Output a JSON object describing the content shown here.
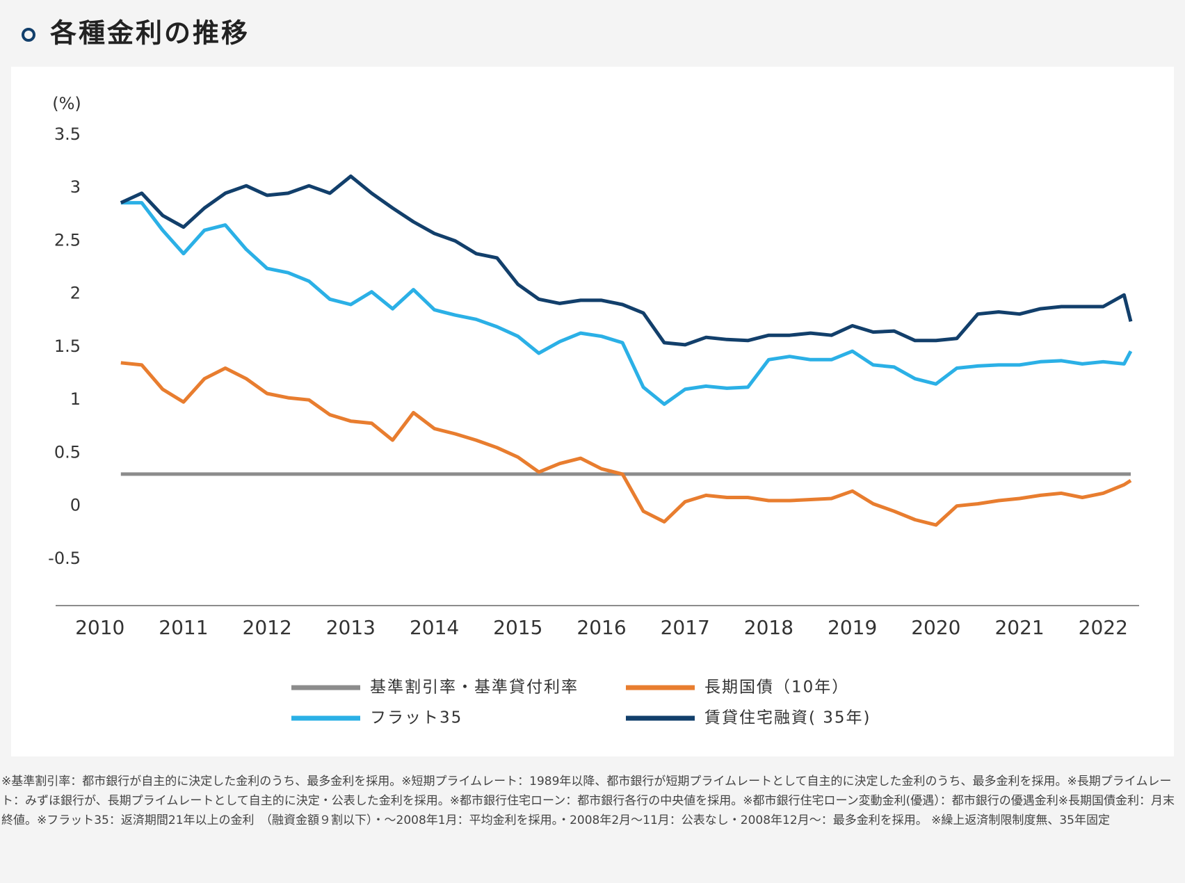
{
  "chart_data": {
    "type": "line",
    "title": "各種金利の推移",
    "y_label": "(%)",
    "x": [
      2010.25,
      2010.5,
      2010.75,
      2011.0,
      2011.25,
      2011.5,
      2011.75,
      2012.0,
      2012.25,
      2012.5,
      2012.75,
      2013.0,
      2013.25,
      2013.5,
      2013.75,
      2014.0,
      2014.25,
      2014.5,
      2014.75,
      2015.0,
      2015.25,
      2015.5,
      2015.75,
      2016.0,
      2016.25,
      2016.5,
      2016.75,
      2017.0,
      2017.25,
      2017.5,
      2017.75,
      2018.0,
      2018.25,
      2018.5,
      2018.75,
      2019.0,
      2019.25,
      2019.5,
      2019.75,
      2020.0,
      2020.25,
      2020.5,
      2020.75,
      2021.0,
      2021.25,
      2021.5,
      2021.75,
      2022.0,
      2022.25,
      2022.33
    ],
    "series": [
      {
        "name": "基準割引率・基準貸付利率",
        "color": "#8c8c8c",
        "values": [
          0.3,
          0.3,
          0.3,
          0.3,
          0.3,
          0.3,
          0.3,
          0.3,
          0.3,
          0.3,
          0.3,
          0.3,
          0.3,
          0.3,
          0.3,
          0.3,
          0.3,
          0.3,
          0.3,
          0.3,
          0.3,
          0.3,
          0.3,
          0.3,
          0.3,
          0.3,
          0.3,
          0.3,
          0.3,
          0.3,
          0.3,
          0.3,
          0.3,
          0.3,
          0.3,
          0.3,
          0.3,
          0.3,
          0.3,
          0.3,
          0.3,
          0.3,
          0.3,
          0.3,
          0.3,
          0.3,
          0.3,
          0.3,
          0.3,
          0.3
        ]
      },
      {
        "name": "長期国債（10年）",
        "color": "#e87d2f",
        "values": [
          1.35,
          1.33,
          1.1,
          0.98,
          1.2,
          1.3,
          1.2,
          1.06,
          1.02,
          1.0,
          0.86,
          0.8,
          0.78,
          0.62,
          0.88,
          0.73,
          0.68,
          0.62,
          0.55,
          0.46,
          0.32,
          0.4,
          0.45,
          0.35,
          0.3,
          -0.05,
          -0.15,
          0.04,
          0.1,
          0.08,
          0.08,
          0.05,
          0.05,
          0.06,
          0.07,
          0.14,
          0.02,
          -0.05,
          -0.13,
          -0.18,
          0.0,
          0.02,
          0.05,
          0.07,
          0.1,
          0.12,
          0.08,
          0.12,
          0.2,
          0.24
        ]
      },
      {
        "name": "フラット35",
        "color": "#2bb0e6",
        "values": [
          2.86,
          2.86,
          2.6,
          2.38,
          2.6,
          2.65,
          2.42,
          2.24,
          2.2,
          2.12,
          1.95,
          1.9,
          2.02,
          1.86,
          2.04,
          1.85,
          1.8,
          1.76,
          1.69,
          1.6,
          1.44,
          1.55,
          1.63,
          1.6,
          1.54,
          1.12,
          0.96,
          1.1,
          1.13,
          1.11,
          1.12,
          1.38,
          1.41,
          1.38,
          1.38,
          1.46,
          1.33,
          1.31,
          1.2,
          1.15,
          1.3,
          1.32,
          1.33,
          1.33,
          1.36,
          1.37,
          1.34,
          1.36,
          1.34,
          1.46
        ]
      },
      {
        "name": "賃貸住宅融資( 35年)",
        "color": "#123f6b",
        "values": [
          2.86,
          2.95,
          2.74,
          2.63,
          2.81,
          2.95,
          3.02,
          2.93,
          2.95,
          3.02,
          2.95,
          3.11,
          2.95,
          2.81,
          2.68,
          2.57,
          2.5,
          2.38,
          2.34,
          2.09,
          1.95,
          1.91,
          1.94,
          1.94,
          1.9,
          1.82,
          1.54,
          1.52,
          1.59,
          1.57,
          1.56,
          1.61,
          1.61,
          1.63,
          1.61,
          1.7,
          1.64,
          1.65,
          1.56,
          1.56,
          1.58,
          1.81,
          1.83,
          1.81,
          1.86,
          1.88,
          1.88,
          1.88,
          1.99,
          1.74
        ]
      }
    ],
    "xlim": [
      2009.47,
      2022.43
    ],
    "xticks": [
      2010,
      2011,
      2012,
      2013,
      2014,
      2015,
      2016,
      2017,
      2018,
      2019,
      2020,
      2021,
      2022
    ],
    "ylim": [
      -0.94,
      3.5
    ],
    "yticks": [
      -0.5,
      0,
      0.5,
      1,
      1.5,
      2,
      2.5,
      3,
      3.5
    ],
    "grid": false
  },
  "footnote": "※基準割引率：都市銀行が自主的に決定した金利のうち、最多金利を採用。※短期プライムレート：1989年以降、都市銀行が短期プライムレートとして自主的に決定した金利のうち、最多金利を採用。※長期プライムレート：みずほ銀行が、長期プライムレートとして自主的に決定・公表した金利を採用。※都市銀行住宅ローン：都市銀行各行の中央値を採用。※都市銀行住宅ローン変動金利(優遇）：都市銀行の優遇金利※長期国債金利：月末終値。※フラット35：返済期間21年以上の金利　（融資金額９割以下）・～2008年1月：平均金利を採用。・2008年2月～11月：公表なし・2008年12月～：最多金利を採用。 ※繰上返済制限制度無、35年固定"
}
